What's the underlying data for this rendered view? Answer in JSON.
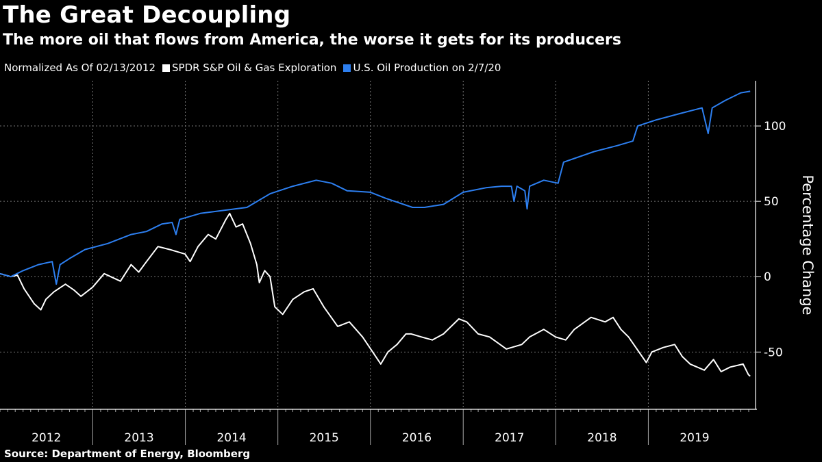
{
  "header": {
    "title": "The Great Decoupling",
    "subtitle": "The more oil that flows from America, the worse it gets for its producers"
  },
  "legend": {
    "note": "Normalized As Of 02/13/2012",
    "items": [
      {
        "label": "SPDR S&P Oil & Gas Exploration",
        "color": "#ffffff"
      },
      {
        "label": "U.S. Oil Production on 2/7/20",
        "color": "#2d7ff0"
      }
    ]
  },
  "footer": {
    "source": "Source: Department of Energy, Bloomberg"
  },
  "chart_data": {
    "type": "line",
    "title": "The Great Decoupling",
    "subtitle": "The more oil that flows from America, the worse it gets for its producers",
    "xlabel": "",
    "ylabel": "Percentage Change",
    "ylim": [
      -88,
      130
    ],
    "xlim": [
      "2012-01-01",
      "2020-02-28"
    ],
    "yticks": [
      100,
      50,
      0,
      -50
    ],
    "ytick_labels": [
      "100",
      "50",
      "0",
      "-50"
    ],
    "xticks": [
      "2012",
      "2013",
      "2014",
      "2015",
      "2016",
      "2017",
      "2018",
      "2019"
    ],
    "grid": true,
    "legend_position": "top-left",
    "series": [
      {
        "name": "SPDR S&P Oil & Gas Exploration",
        "color": "#ffffff",
        "points": [
          [
            "2012-01-01",
            2
          ],
          [
            "2012-02-13",
            0
          ],
          [
            "2012-03-10",
            1
          ],
          [
            "2012-04-05",
            -8
          ],
          [
            "2012-05-15",
            -18
          ],
          [
            "2012-06-10",
            -22
          ],
          [
            "2012-06-30",
            -15
          ],
          [
            "2012-08-01",
            -10
          ],
          [
            "2012-09-15",
            -5
          ],
          [
            "2012-10-20",
            -9
          ],
          [
            "2012-11-15",
            -13
          ],
          [
            "2012-12-31",
            -7
          ],
          [
            "2013-02-15",
            2
          ],
          [
            "2013-04-20",
            -3
          ],
          [
            "2013-06-01",
            8
          ],
          [
            "2013-07-01",
            3
          ],
          [
            "2013-08-01",
            10
          ],
          [
            "2013-09-15",
            20
          ],
          [
            "2013-11-01",
            18
          ],
          [
            "2013-12-31",
            15
          ],
          [
            "2014-01-20",
            10
          ],
          [
            "2014-02-20",
            20
          ],
          [
            "2014-04-01",
            28
          ],
          [
            "2014-05-01",
            25
          ],
          [
            "2014-06-10",
            38
          ],
          [
            "2014-06-25",
            42
          ],
          [
            "2014-07-20",
            33
          ],
          [
            "2014-08-15",
            35
          ],
          [
            "2014-09-15",
            22
          ],
          [
            "2014-10-10",
            8
          ],
          [
            "2014-10-20",
            -4
          ],
          [
            "2014-11-10",
            4
          ],
          [
            "2014-12-01",
            0
          ],
          [
            "2014-12-20",
            -20
          ],
          [
            "2015-01-20",
            -25
          ],
          [
            "2015-03-01",
            -15
          ],
          [
            "2015-04-15",
            -10
          ],
          [
            "2015-05-20",
            -8
          ],
          [
            "2015-07-01",
            -20
          ],
          [
            "2015-08-25",
            -33
          ],
          [
            "2015-10-10",
            -30
          ],
          [
            "2015-12-01",
            -40
          ],
          [
            "2016-01-10",
            -50
          ],
          [
            "2016-02-11",
            -58
          ],
          [
            "2016-03-10",
            -50
          ],
          [
            "2016-04-15",
            -45
          ],
          [
            "2016-05-20",
            -38
          ],
          [
            "2016-06-10",
            -38
          ],
          [
            "2016-07-20",
            -40
          ],
          [
            "2016-09-01",
            -42
          ],
          [
            "2016-10-15",
            -38
          ],
          [
            "2016-12-15",
            -28
          ],
          [
            "2017-01-15",
            -30
          ],
          [
            "2017-03-01",
            -38
          ],
          [
            "2017-04-15",
            -40
          ],
          [
            "2017-06-20",
            -48
          ],
          [
            "2017-08-20",
            -45
          ],
          [
            "2017-09-20",
            -40
          ],
          [
            "2017-11-15",
            -35
          ],
          [
            "2017-12-31",
            -40
          ],
          [
            "2018-02-09",
            -42
          ],
          [
            "2018-03-15",
            -35
          ],
          [
            "2018-05-20",
            -27
          ],
          [
            "2018-07-15",
            -30
          ],
          [
            "2018-08-15",
            -27
          ],
          [
            "2018-09-15",
            -35
          ],
          [
            "2018-10-15",
            -40
          ],
          [
            "2018-12-24",
            -57
          ],
          [
            "2019-01-15",
            -50
          ],
          [
            "2019-03-01",
            -47
          ],
          [
            "2019-04-15",
            -45
          ],
          [
            "2019-05-15",
            -53
          ],
          [
            "2019-06-15",
            -58
          ],
          [
            "2019-08-10",
            -62
          ],
          [
            "2019-09-15",
            -55
          ],
          [
            "2019-10-15",
            -63
          ],
          [
            "2019-11-20",
            -60
          ],
          [
            "2020-01-10",
            -58
          ],
          [
            "2020-01-31",
            -65
          ],
          [
            "2020-02-07",
            -66
          ]
        ]
      },
      {
        "name": "U.S. Oil Production on 2/7/20",
        "color": "#2d7ff0",
        "points": [
          [
            "2012-01-01",
            2
          ],
          [
            "2012-02-13",
            0
          ],
          [
            "2012-04-01",
            4
          ],
          [
            "2012-06-01",
            8
          ],
          [
            "2012-07-25",
            10
          ],
          [
            "2012-08-10",
            -5
          ],
          [
            "2012-08-25",
            8
          ],
          [
            "2012-10-01",
            12
          ],
          [
            "2012-12-01",
            18
          ],
          [
            "2013-03-01",
            22
          ],
          [
            "2013-06-01",
            28
          ],
          [
            "2013-08-01",
            30
          ],
          [
            "2013-10-01",
            35
          ],
          [
            "2013-11-10",
            36
          ],
          [
            "2013-11-25",
            28
          ],
          [
            "2013-12-10",
            38
          ],
          [
            "2014-03-01",
            42
          ],
          [
            "2014-06-01",
            44
          ],
          [
            "2014-09-01",
            46
          ],
          [
            "2014-12-01",
            55
          ],
          [
            "2015-03-01",
            60
          ],
          [
            "2015-06-01",
            64
          ],
          [
            "2015-08-01",
            62
          ],
          [
            "2015-10-01",
            57
          ],
          [
            "2016-01-01",
            56
          ],
          [
            "2016-03-01",
            52
          ],
          [
            "2016-06-15",
            46
          ],
          [
            "2016-08-01",
            46
          ],
          [
            "2016-10-15",
            48
          ],
          [
            "2017-01-01",
            56
          ],
          [
            "2017-04-01",
            59
          ],
          [
            "2017-06-01",
            60
          ],
          [
            "2017-07-10",
            60
          ],
          [
            "2017-07-20",
            50
          ],
          [
            "2017-08-01",
            60
          ],
          [
            "2017-09-01",
            57
          ],
          [
            "2017-09-10",
            45
          ],
          [
            "2017-09-20",
            60
          ],
          [
            "2017-11-15",
            64
          ],
          [
            "2018-01-10",
            62
          ],
          [
            "2018-02-01",
            76
          ],
          [
            "2018-06-01",
            83
          ],
          [
            "2018-09-01",
            87
          ],
          [
            "2018-11-01",
            90
          ],
          [
            "2018-11-20",
            100
          ],
          [
            "2019-02-01",
            104
          ],
          [
            "2019-05-01",
            108
          ],
          [
            "2019-08-01",
            112
          ],
          [
            "2019-08-25",
            95
          ],
          [
            "2019-09-10",
            112
          ],
          [
            "2019-11-01",
            117
          ],
          [
            "2020-01-01",
            122
          ],
          [
            "2020-02-07",
            123
          ]
        ]
      }
    ]
  }
}
